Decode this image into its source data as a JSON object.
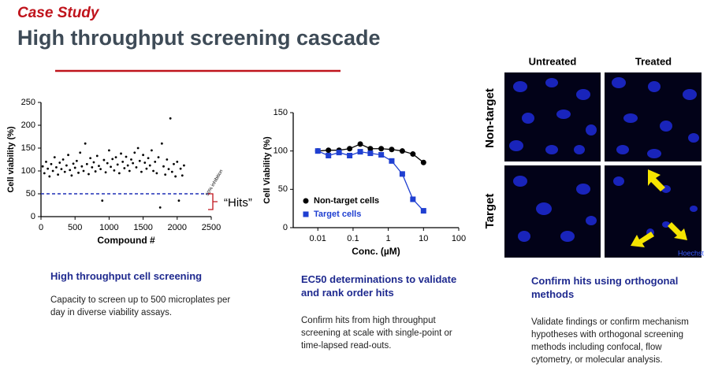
{
  "header": {
    "label": "Case Study",
    "title": "High throughput screening cascade"
  },
  "chart_data": [
    {
      "type": "scatter",
      "color": "#000000",
      "xlabel": "Compound #",
      "ylabel": "Cell viability (%)",
      "xlim": [
        0,
        2500
      ],
      "ylim": [
        0,
        250
      ],
      "xticks": [
        0,
        500,
        1000,
        1500,
        2000,
        2500
      ],
      "yticks": [
        0,
        50,
        100,
        150,
        200,
        250
      ],
      "x": [
        25,
        50,
        75,
        100,
        125,
        150,
        175,
        200,
        225,
        250,
        275,
        300,
        325,
        350,
        375,
        400,
        425,
        450,
        475,
        500,
        525,
        550,
        575,
        600,
        625,
        650,
        675,
        700,
        725,
        750,
        775,
        800,
        825,
        850,
        875,
        900,
        925,
        950,
        975,
        1000,
        1025,
        1050,
        1075,
        1100,
        1125,
        1150,
        1175,
        1200,
        1225,
        1250,
        1275,
        1300,
        1325,
        1350,
        1375,
        1400,
        1425,
        1450,
        1475,
        1500,
        1525,
        1550,
        1575,
        1600,
        1625,
        1650,
        1675,
        1700,
        1725,
        1750,
        1775,
        1800,
        1825,
        1850,
        1875,
        1900,
        1925,
        1950,
        1975,
        2000,
        2025,
        2050,
        2075,
        2100
      ],
      "values": [
        110,
        95,
        120,
        105,
        88,
        115,
        100,
        130,
        108,
        92,
        118,
        104,
        125,
        98,
        112,
        135,
        102,
        90,
        116,
        107,
        122,
        96,
        140,
        110,
        100,
        160,
        115,
        93,
        128,
        108,
        119,
        99,
        133,
        111,
        104,
        35,
        124,
        97,
        117,
        145,
        109,
        126,
        101,
        130,
        114,
        95,
        138,
        120,
        106,
        131,
        112,
        100,
        125,
        117,
        140,
        108,
        150,
        122,
        98,
        135,
        118,
        105,
        128,
        112,
        145,
        100,
        120,
        95,
        130,
        20,
        160,
        110,
        92,
        125,
        104,
        215,
        98,
        115,
        88,
        120,
        35,
        105,
        90,
        112
      ],
      "reference_line": {
        "value": 50,
        "label": "50% inhibition",
        "color": "#1f2fb5"
      },
      "annotation": "“Hits”"
    },
    {
      "type": "line",
      "xlabel": "Conc. (µM)",
      "ylabel": "Cell Viability (%)",
      "xlog": true,
      "xlim": [
        0.002,
        100
      ],
      "ylim": [
        0,
        150
      ],
      "xticks": [
        0.01,
        0.1,
        1,
        10,
        100
      ],
      "yticks": [
        0,
        50,
        100,
        150
      ],
      "legend": "lower left",
      "x": [
        0.01,
        0.02,
        0.04,
        0.08,
        0.16,
        0.31,
        0.63,
        1.25,
        2.5,
        5,
        10
      ],
      "series": [
        {
          "name": "Non-target cells",
          "color": "#000000",
          "marker": "circle",
          "values": [
            100,
            101,
            101,
            103,
            109,
            103,
            103,
            102,
            100,
            96,
            85
          ]
        },
        {
          "name": "Target cells",
          "color": "#1f3fd1",
          "marker": "square",
          "values": [
            100,
            94,
            98,
            94,
            99,
            97,
            95,
            87,
            70,
            37,
            22
          ]
        }
      ]
    }
  ],
  "columns": [
    {
      "heading": "High throughput cell screening",
      "body": "Capacity to screen up to 500 microplates per day in diverse viability assays."
    },
    {
      "heading": "EC50 determinations to validate and rank order hits",
      "body": "Confirm hits from high throughput screening at scale with single-point or time-lapsed read-outs."
    },
    {
      "heading": "Confirm hits using orthogonal methods",
      "body": "Validate findings or confirm mechanism hypotheses with orthogonal screening methods including confocal, flow cytometry, or molecular analysis."
    }
  ],
  "imaging": {
    "col_labels": [
      "Untreated",
      "Treated"
    ],
    "row_labels": [
      "Non-target",
      "Target"
    ],
    "stain": "Hoechst"
  }
}
